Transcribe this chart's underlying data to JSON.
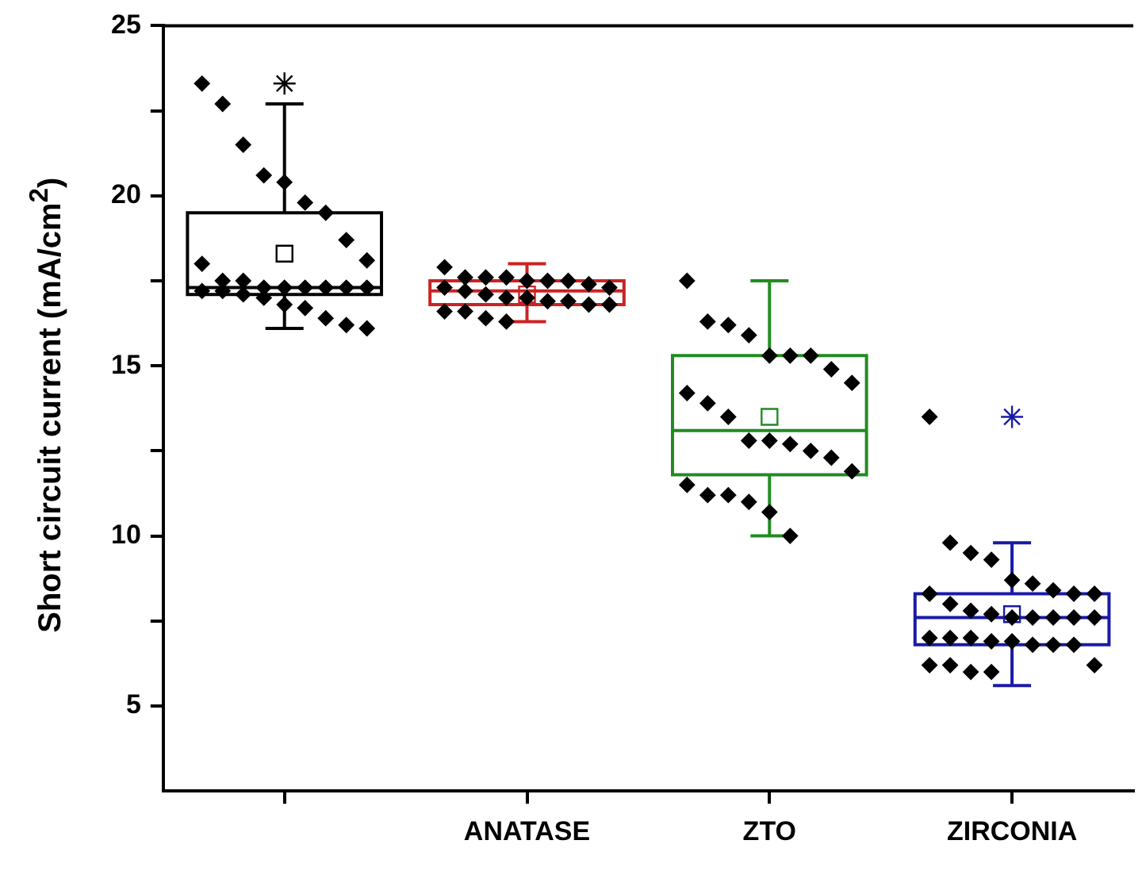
{
  "chart_data": {
    "type": "box",
    "ylabel": "Short circuit current (mA/cm$^{2}$)",
    "categories": [
      null,
      "ANATASE",
      "ZTO",
      "ZIRCONIA"
    ],
    "colors": [
      "#000000",
      "#cc2222",
      "#228b22",
      "#1a1aa6"
    ],
    "boxes": [
      {
        "low": 16.1,
        "q1": 17.1,
        "median": 17.3,
        "q3": 19.5,
        "high": 22.7,
        "mean": 18.3,
        "outliers": [
          23.3
        ]
      },
      {
        "low": 16.3,
        "q1": 16.8,
        "median": 17.2,
        "q3": 17.5,
        "high": 18.0,
        "mean": 17.1
      },
      {
        "low": 10.0,
        "q1": 11.8,
        "median": 13.1,
        "q3": 15.3,
        "high": 17.5,
        "mean": 13.5
      },
      {
        "low": 5.6,
        "q1": 6.8,
        "median": 7.6,
        "q3": 8.3,
        "high": 9.8,
        "mean": 7.7,
        "outliers": [
          13.5
        ]
      }
    ],
    "series": [
      {
        "type": "scatter",
        "color": "#000000",
        "x": [
          null,
          null,
          null,
          null,
          null,
          null,
          null,
          null,
          null,
          null,
          null,
          null,
          null,
          null,
          null,
          null,
          null,
          null,
          null,
          null,
          null,
          null,
          null,
          null,
          null,
          null,
          null
        ],
        "values": [
          23.3,
          22.7,
          21.5,
          20.6,
          20.4,
          19.8,
          19.5,
          18.7,
          18.1,
          18.0,
          17.5,
          17.5,
          17.3,
          17.3,
          17.3,
          17.3,
          17.3,
          17.3,
          17.2,
          17.2,
          17.1,
          17.0,
          16.8,
          16.7,
          16.4,
          16.2,
          16.1
        ]
      },
      {
        "type": "scatter",
        "color": "#000000",
        "x": [
          "ANATASE",
          "ANATASE",
          "ANATASE",
          "ANATASE",
          "ANATASE",
          "ANATASE",
          "ANATASE",
          "ANATASE",
          "ANATASE",
          "ANATASE",
          "ANATASE",
          "ANATASE",
          "ANATASE",
          "ANATASE",
          "ANATASE",
          "ANATASE",
          "ANATASE",
          "ANATASE",
          "ANATASE",
          "ANATASE",
          "ANATASE",
          "ANATASE"
        ],
        "values": [
          17.9,
          17.6,
          17.6,
          17.6,
          17.5,
          17.5,
          17.5,
          17.4,
          17.3,
          17.3,
          17.2,
          17.1,
          17.0,
          17.0,
          16.9,
          16.9,
          16.8,
          16.8,
          16.6,
          16.6,
          16.4,
          16.3
        ]
      },
      {
        "type": "scatter",
        "color": "#000000",
        "x": [
          "ZTO",
          "ZTO",
          "ZTO",
          "ZTO",
          "ZTO",
          "ZTO",
          "ZTO",
          "ZTO",
          "ZTO",
          "ZTO",
          "ZTO",
          "ZTO",
          "ZTO",
          "ZTO",
          "ZTO",
          "ZTO",
          "ZTO",
          "ZTO",
          "ZTO",
          "ZTO",
          "ZTO",
          "ZTO",
          "ZTO",
          "ZTO"
        ],
        "values": [
          17.5,
          16.3,
          16.2,
          15.9,
          15.3,
          15.3,
          15.3,
          14.9,
          14.5,
          14.2,
          13.9,
          13.5,
          12.8,
          12.8,
          12.7,
          12.5,
          12.3,
          11.9,
          11.5,
          11.2,
          11.2,
          11.0,
          10.7,
          10.0
        ]
      },
      {
        "type": "scatter",
        "color": "#000000",
        "x": [
          "ZIRCONIA",
          "ZIRCONIA",
          "ZIRCONIA",
          "ZIRCONIA",
          "ZIRCONIA",
          "ZIRCONIA",
          "ZIRCONIA",
          "ZIRCONIA",
          "ZIRCONIA",
          "ZIRCONIA",
          "ZIRCONIA",
          "ZIRCONIA",
          "ZIRCONIA",
          "ZIRCONIA",
          "ZIRCONIA",
          "ZIRCONIA",
          "ZIRCONIA",
          "ZIRCONIA",
          "ZIRCONIA",
          "ZIRCONIA",
          "ZIRCONIA",
          "ZIRCONIA",
          "ZIRCONIA",
          "ZIRCONIA",
          "ZIRCONIA",
          "ZIRCONIA",
          "ZIRCONIA",
          "ZIRCONIA",
          "ZIRCONIA",
          "ZIRCONIA",
          "ZIRCONIA"
        ],
        "values": [
          13.5,
          9.8,
          9.5,
          9.3,
          8.7,
          8.6,
          8.4,
          8.3,
          8.3,
          8.3,
          8.0,
          7.8,
          7.7,
          7.6,
          7.6,
          7.6,
          7.6,
          7.6,
          7.0,
          7.0,
          7.0,
          6.9,
          6.9,
          6.8,
          6.8,
          6.8,
          6.2,
          6.2,
          6.2,
          6.0,
          6.0
        ]
      }
    ],
    "ylim": [
      2.5,
      25
    ],
    "yticks": [
      5,
      {
        "value": 7.5,
        "label": null
      },
      10,
      {
        "value": 12.5,
        "label": null
      },
      15,
      {
        "value": 17.5,
        "label": null
      },
      20,
      {
        "value": 22.5,
        "label": null
      },
      25
    ],
    "marker": "diamond",
    "grid": false,
    "legend": false
  }
}
